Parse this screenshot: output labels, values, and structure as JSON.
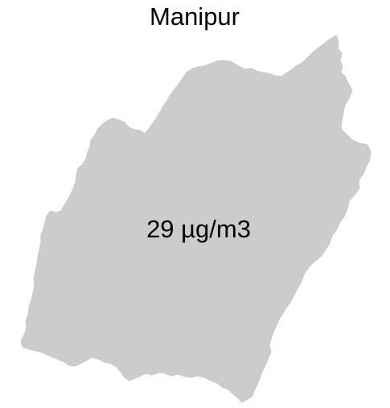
{
  "map": {
    "title": "Manipur",
    "value_label": "29 µg/m3",
    "region_fill": "#cccccc",
    "background": "#ffffff",
    "text_color": "#000000"
  }
}
